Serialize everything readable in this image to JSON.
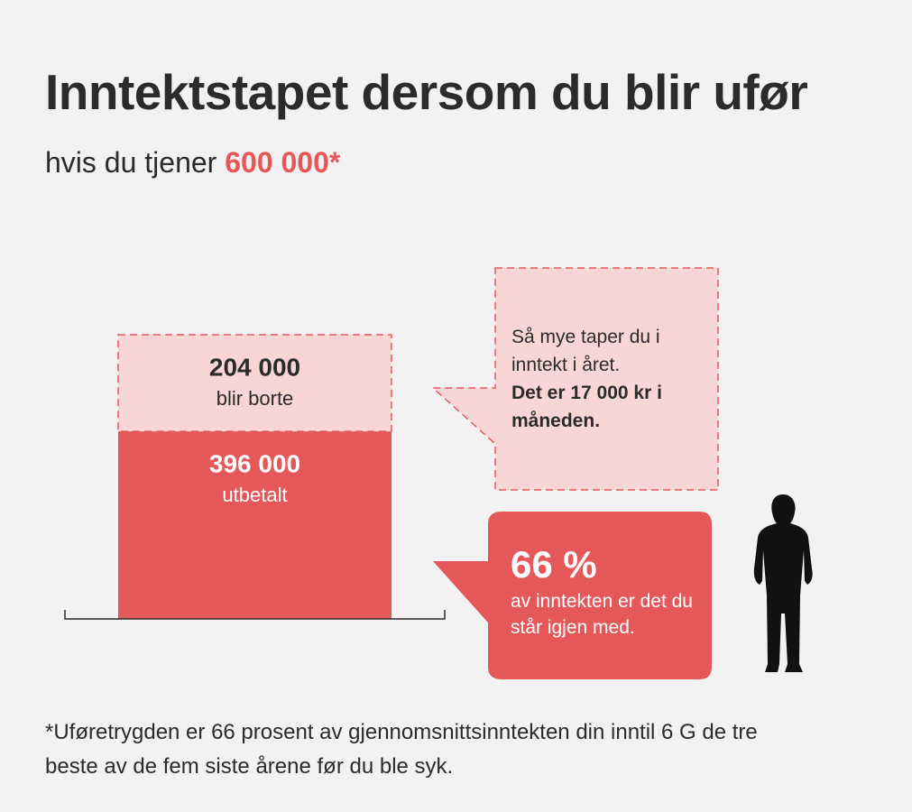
{
  "chart_data": {
    "type": "bar",
    "stacked": true,
    "title": "Inntektstapet dersom du blir ufør",
    "subtitle": "hvis du tjener",
    "subtitle_highlight": "600 000*",
    "categories": [
      null
    ],
    "ylim": [
      0,
      600000
    ],
    "series": [
      {
        "name": "utbetalt",
        "color": "#e5585a",
        "values": [
          396000
        ],
        "value_labels": [
          "396 000"
        ],
        "label_color": "#ffffff",
        "border": "none"
      },
      {
        "name": "blir borte",
        "color": "#f8d6d5",
        "values": [
          204000
        ],
        "value_labels": [
          "204 000"
        ],
        "label_color": "#2b2b2b",
        "border": "dashed"
      }
    ],
    "annotations": [
      {
        "text": "Så mye taper du i inntekt i året.",
        "bold": "Det er 17 000 kr i måneden."
      },
      {
        "big": "66 %",
        "text": "av inntekten er det du står igjen med."
      }
    ],
    "footnote": "*Uføretrygden er 66 prosent av gjennomsnittsinntekten din inntil 6 G de tre beste av de fem siste årene før du ble syk."
  }
}
